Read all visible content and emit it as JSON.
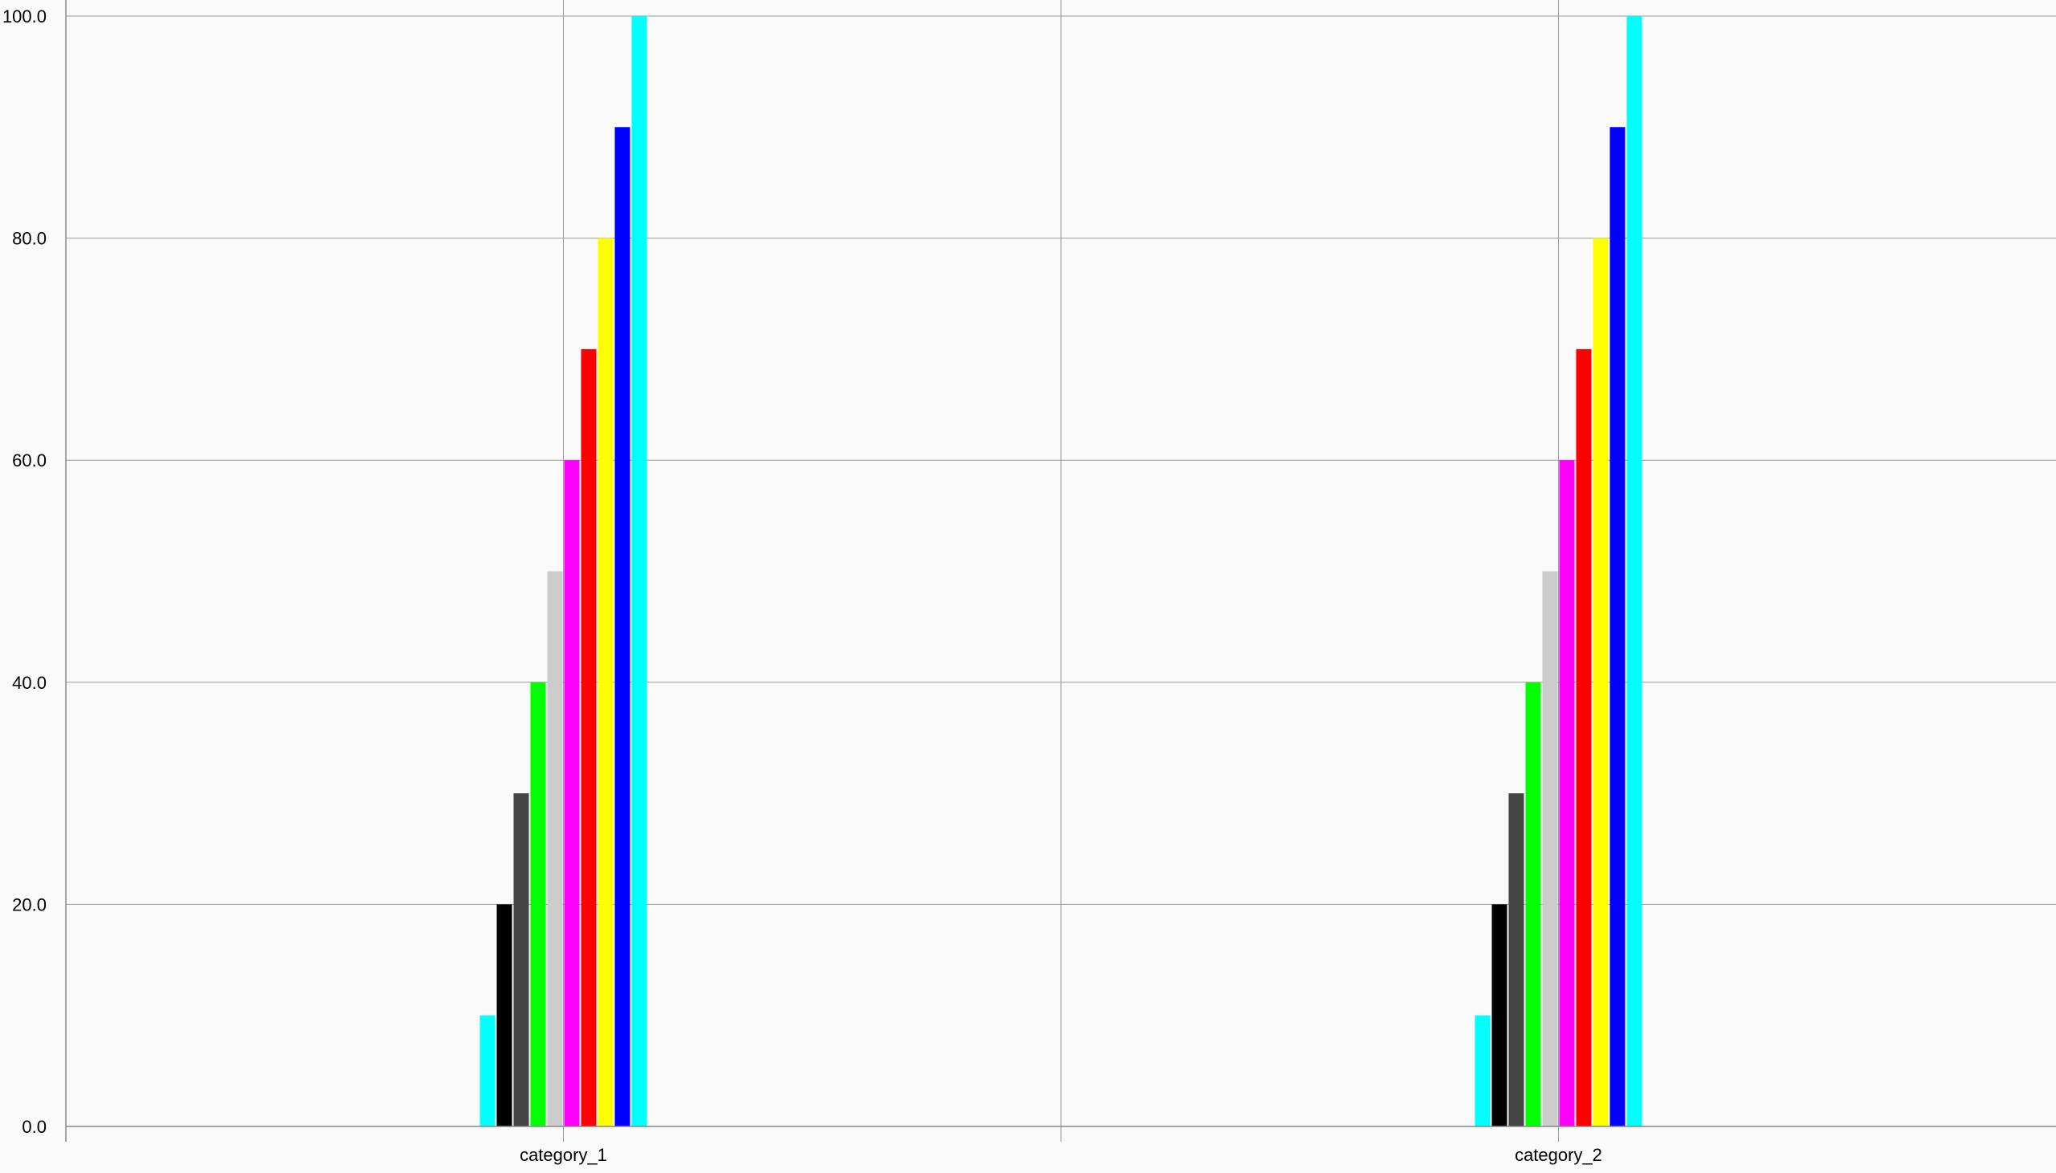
{
  "chart_data": {
    "type": "bar",
    "title": "",
    "xlabel": "",
    "ylabel": "",
    "categories": [
      "category_1",
      "category_2"
    ],
    "ylim": [
      0,
      100
    ],
    "y_ticks": [
      "0.0",
      "20.0",
      "40.0",
      "60.0",
      "80.0",
      "100.0"
    ],
    "y_tick_values": [
      0,
      20,
      40,
      60,
      80,
      100
    ],
    "grid": true,
    "legend": "none",
    "series": [
      {
        "color": "#00ffff",
        "values": [
          10,
          10
        ]
      },
      {
        "color": "#000000",
        "values": [
          20,
          20
        ]
      },
      {
        "color": "#444444",
        "values": [
          30,
          30
        ]
      },
      {
        "color": "#00ff00",
        "values": [
          40,
          40
        ]
      },
      {
        "color": "#cccccc",
        "values": [
          50,
          50
        ]
      },
      {
        "color": "#ff00ff",
        "values": [
          60,
          60
        ]
      },
      {
        "color": "#ff0000",
        "values": [
          70,
          70
        ]
      },
      {
        "color": "#ffff00",
        "values": [
          80,
          80
        ]
      },
      {
        "color": "#0000ff",
        "values": [
          90,
          90
        ]
      },
      {
        "color": "#00ffff",
        "values": [
          100,
          100
        ]
      }
    ]
  },
  "colors": {
    "background": "#fafafa",
    "grid": "#999999",
    "axis": "#888888",
    "text": "#000000"
  }
}
